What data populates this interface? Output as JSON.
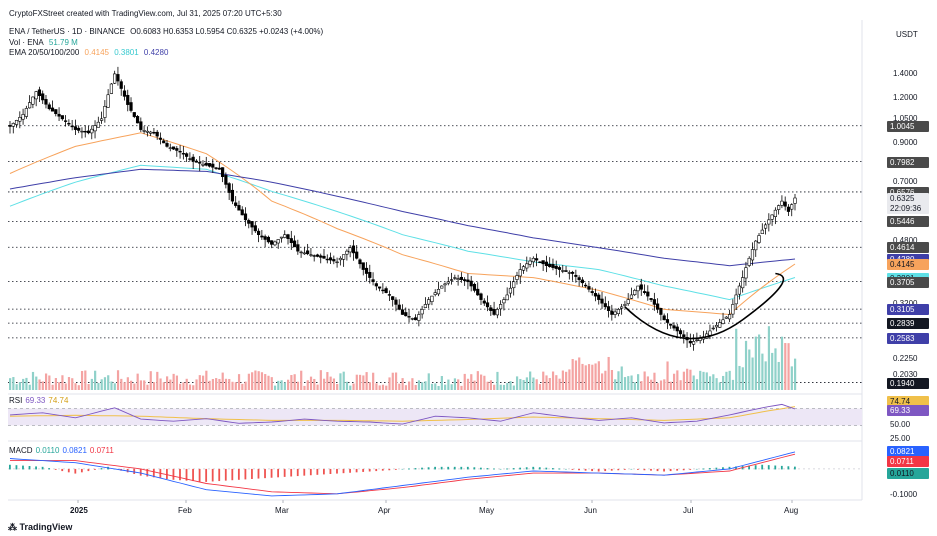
{
  "header": {
    "credit": "CryptoFXStreet created with TradingView.com, Jul 31, 2025 07:20 UTC+5:30",
    "symbol_line": "ENA / TetherUS · 1D · BINANCE",
    "ohlc": "O0.6083 H0.6353 L0.5954 C0.6325 +0.0243 (+4.00%)",
    "vol_label": "Vol · ENA",
    "vol_value": "51.79 M",
    "ema_label": "EMA 20/50/100/200",
    "ema_values": [
      "0.4145",
      "0.3801",
      "0.4280"
    ],
    "currency": "USDT"
  },
  "footer": {
    "brand": "TradingView"
  },
  "colors": {
    "up": "#26a69a",
    "down": "#ef5350",
    "candle": "#000000",
    "ema50": "#f7a35c",
    "ema100": "#5ee0e6",
    "ema200": "#3f3fa8",
    "rsi": "#7e57c2",
    "rsi_ma": "#f0c04a",
    "macd": "#2962ff",
    "signal": "#f23645"
  },
  "chart_data": {
    "type": "candlestick",
    "scale": "log",
    "price_axis_ticks": [
      "1.4000",
      "1.2000",
      "1.0500",
      "0.9000",
      "0.7000",
      "0.4800",
      "0.3200",
      "0.2250",
      "0.2030",
      "0.1940"
    ],
    "time_axis": [
      "2025",
      "Feb",
      "Mar",
      "Apr",
      "May",
      "Jun",
      "Jul",
      "Aug"
    ],
    "price_labels": [
      {
        "value": "1.0045",
        "style": "gray"
      },
      {
        "value": "0.7982",
        "style": "gray"
      },
      {
        "value": "0.6576",
        "style": "gray"
      },
      {
        "value": "0.6325",
        "style": "current"
      },
      {
        "value": "22:09:36",
        "style": "current-sub"
      },
      {
        "value": "0.5446",
        "style": "gray"
      },
      {
        "value": "0.4614",
        "style": "gray"
      },
      {
        "value": "0.4280",
        "style": "ema200"
      },
      {
        "value": "0.4145",
        "style": "ema50"
      },
      {
        "value": "0.3801",
        "style": "ema100"
      },
      {
        "value": "0.3705",
        "style": "gray"
      },
      {
        "value": "0.3105",
        "style": "ema200"
      },
      {
        "value": "0.2839",
        "style": "black"
      },
      {
        "value": "0.2583",
        "style": "ema200"
      },
      {
        "value": "0.1940",
        "style": "black"
      }
    ],
    "horizontal_levels": [
      1.0045,
      0.7982,
      0.6576,
      0.5446,
      0.4614,
      0.3705,
      0.3105,
      0.2839,
      0.2583,
      0.194
    ],
    "price_path": [
      [
        0,
        1.0
      ],
      [
        4,
        1.08
      ],
      [
        8,
        1.25
      ],
      [
        12,
        1.12
      ],
      [
        16,
        1.05
      ],
      [
        20,
        0.98
      ],
      [
        24,
        0.96
      ],
      [
        28,
        1.05
      ],
      [
        32,
        1.4
      ],
      [
        36,
        1.15
      ],
      [
        40,
        0.98
      ],
      [
        44,
        0.96
      ],
      [
        48,
        0.88
      ],
      [
        52,
        0.85
      ],
      [
        56,
        0.8
      ],
      [
        60,
        0.78
      ],
      [
        64,
        0.76
      ],
      [
        68,
        0.62
      ],
      [
        72,
        0.55
      ],
      [
        76,
        0.5
      ],
      [
        80,
        0.47
      ],
      [
        84,
        0.5
      ],
      [
        88,
        0.45
      ],
      [
        92,
        0.44
      ],
      [
        96,
        0.43
      ],
      [
        100,
        0.42
      ],
      [
        104,
        0.46
      ],
      [
        108,
        0.4
      ],
      [
        112,
        0.36
      ],
      [
        116,
        0.34
      ],
      [
        120,
        0.3
      ],
      [
        124,
        0.29
      ],
      [
        128,
        0.33
      ],
      [
        132,
        0.36
      ],
      [
        136,
        0.38
      ],
      [
        140,
        0.37
      ],
      [
        144,
        0.33
      ],
      [
        148,
        0.3
      ],
      [
        152,
        0.34
      ],
      [
        156,
        0.4
      ],
      [
        160,
        0.43
      ],
      [
        164,
        0.41
      ],
      [
        168,
        0.4
      ],
      [
        172,
        0.39
      ],
      [
        176,
        0.36
      ],
      [
        180,
        0.33
      ],
      [
        184,
        0.3
      ],
      [
        188,
        0.32
      ],
      [
        192,
        0.36
      ],
      [
        196,
        0.33
      ],
      [
        200,
        0.29
      ],
      [
        204,
        0.27
      ],
      [
        208,
        0.25
      ],
      [
        212,
        0.26
      ],
      [
        216,
        0.28
      ],
      [
        220,
        0.3
      ],
      [
        224,
        0.38
      ],
      [
        228,
        0.48
      ],
      [
        232,
        0.55
      ],
      [
        236,
        0.62
      ],
      [
        238,
        0.58
      ],
      [
        240,
        0.6325
      ]
    ],
    "ema50": [
      [
        0,
        0.74
      ],
      [
        20,
        0.88
      ],
      [
        40,
        0.96
      ],
      [
        60,
        0.84
      ],
      [
        80,
        0.62
      ],
      [
        100,
        0.52
      ],
      [
        120,
        0.44
      ],
      [
        140,
        0.39
      ],
      [
        160,
        0.38
      ],
      [
        180,
        0.35
      ],
      [
        200,
        0.31
      ],
      [
        220,
        0.3
      ],
      [
        240,
        0.4145
      ]
    ],
    "ema100": [
      [
        0,
        0.6
      ],
      [
        20,
        0.7
      ],
      [
        40,
        0.78
      ],
      [
        60,
        0.76
      ],
      [
        80,
        0.66
      ],
      [
        100,
        0.58
      ],
      [
        120,
        0.5
      ],
      [
        140,
        0.45
      ],
      [
        160,
        0.42
      ],
      [
        180,
        0.4
      ],
      [
        200,
        0.36
      ],
      [
        220,
        0.33
      ],
      [
        240,
        0.3801
      ]
    ],
    "ema200": [
      [
        0,
        0.67
      ],
      [
        20,
        0.72
      ],
      [
        40,
        0.76
      ],
      [
        60,
        0.75
      ],
      [
        80,
        0.7
      ],
      [
        100,
        0.64
      ],
      [
        120,
        0.58
      ],
      [
        140,
        0.53
      ],
      [
        160,
        0.49
      ],
      [
        180,
        0.46
      ],
      [
        200,
        0.43
      ],
      [
        220,
        0.41
      ],
      [
        240,
        0.428
      ]
    ],
    "rsi": {
      "label": "RSI",
      "value": "69.33",
      "ma": "74.74",
      "ticks": [
        "74.74",
        "69.33",
        "50.00",
        "25.00"
      ],
      "series": [
        [
          0,
          55
        ],
        [
          10,
          60
        ],
        [
          20,
          48
        ],
        [
          32,
          72
        ],
        [
          40,
          45
        ],
        [
          50,
          40
        ],
        [
          60,
          46
        ],
        [
          70,
          35
        ],
        [
          80,
          38
        ],
        [
          90,
          45
        ],
        [
          100,
          40
        ],
        [
          110,
          38
        ],
        [
          120,
          33
        ],
        [
          130,
          52
        ],
        [
          140,
          48
        ],
        [
          150,
          40
        ],
        [
          160,
          60
        ],
        [
          170,
          50
        ],
        [
          180,
          42
        ],
        [
          190,
          48
        ],
        [
          200,
          36
        ],
        [
          210,
          40
        ],
        [
          220,
          55
        ],
        [
          230,
          72
        ],
        [
          236,
          80
        ],
        [
          240,
          69
        ]
      ],
      "ma_series": [
        [
          0,
          52
        ],
        [
          20,
          54
        ],
        [
          40,
          52
        ],
        [
          60,
          46
        ],
        [
          80,
          42
        ],
        [
          100,
          42
        ],
        [
          120,
          40
        ],
        [
          140,
          44
        ],
        [
          160,
          50
        ],
        [
          180,
          46
        ],
        [
          200,
          42
        ],
        [
          220,
          48
        ],
        [
          232,
          65
        ],
        [
          240,
          74.74
        ]
      ]
    },
    "macd": {
      "label": "MACD",
      "values": [
        "0.0110",
        "0.0821",
        "0.0711"
      ],
      "ticks": [
        "0.0821",
        "0.0711",
        "0.0110",
        "-0.1000"
      ],
      "hist": [
        [
          0,
          0.02
        ],
        [
          10,
          0.01
        ],
        [
          20,
          -0.02
        ],
        [
          30,
          0.01
        ],
        [
          40,
          -0.03
        ],
        [
          50,
          -0.05
        ],
        [
          60,
          -0.06
        ],
        [
          70,
          -0.05
        ],
        [
          80,
          -0.04
        ],
        [
          90,
          -0.03
        ],
        [
          100,
          -0.02
        ],
        [
          110,
          -0.01
        ],
        [
          120,
          0.0
        ],
        [
          130,
          0.01
        ],
        [
          140,
          0.01
        ],
        [
          150,
          0.0
        ],
        [
          160,
          0.01
        ],
        [
          170,
          0.0
        ],
        [
          180,
          -0.01
        ],
        [
          190,
          0.0
        ],
        [
          200,
          -0.01
        ],
        [
          210,
          0.0
        ],
        [
          220,
          0.01
        ],
        [
          230,
          0.02
        ],
        [
          240,
          0.011
        ]
      ],
      "macd_line": [
        [
          0,
          0.05
        ],
        [
          20,
          0.03
        ],
        [
          40,
          -0.02
        ],
        [
          60,
          -0.1
        ],
        [
          80,
          -0.13
        ],
        [
          100,
          -0.12
        ],
        [
          120,
          -0.08
        ],
        [
          140,
          -0.04
        ],
        [
          160,
          -0.01
        ],
        [
          180,
          -0.02
        ],
        [
          200,
          -0.03
        ],
        [
          220,
          0.0
        ],
        [
          240,
          0.0821
        ]
      ],
      "signal_line": [
        [
          0,
          0.04
        ],
        [
          20,
          0.04
        ],
        [
          40,
          0.0
        ],
        [
          60,
          -0.07
        ],
        [
          80,
          -0.11
        ],
        [
          100,
          -0.12
        ],
        [
          120,
          -0.09
        ],
        [
          140,
          -0.05
        ],
        [
          160,
          -0.02
        ],
        [
          180,
          -0.02
        ],
        [
          200,
          -0.03
        ],
        [
          220,
          -0.01
        ],
        [
          240,
          0.0711
        ]
      ]
    }
  }
}
